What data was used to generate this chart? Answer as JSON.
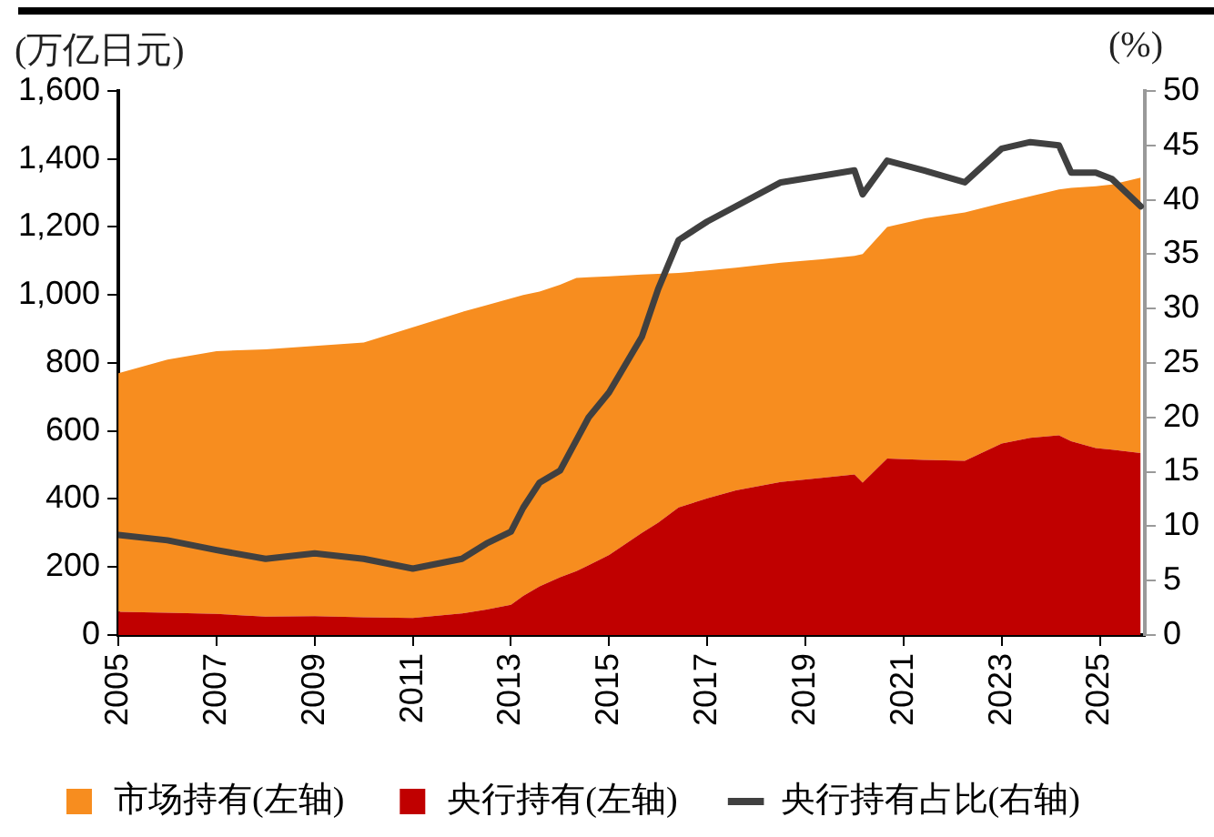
{
  "chart_data": {
    "type": "area",
    "stacked": true,
    "ylabel": "(万亿日元)",
    "y2label": "(%)",
    "legend": "bottom",
    "marker": "none",
    "x": [
      "2005-01",
      "2006-01",
      "2007-01",
      "2008-01",
      "2009-01",
      "2010-01",
      "2011-01",
      "2012-01",
      "2012-07",
      "2013-01",
      "2013-04",
      "2013-08",
      "2014-01",
      "2014-05",
      "2014-08",
      "2015-01",
      "2015-09",
      "2016-01",
      "2016-06",
      "2017-01",
      "2017-08",
      "2018-07",
      "2019-05",
      "2020-01",
      "2020-03",
      "2020-09",
      "2021-06",
      "2022-04",
      "2023-01",
      "2023-08",
      "2024-03",
      "2024-06",
      "2024-12",
      "2025-04",
      "2025-11"
    ],
    "xlim": [
      "2005-01",
      "2025-12"
    ],
    "xticks": [
      "2005",
      "2007",
      "2009",
      "2011",
      "2013",
      "2015",
      "2017",
      "2019",
      "2021",
      "2023",
      "2025"
    ],
    "ylim": [
      0,
      1600
    ],
    "yticks": [
      0,
      200,
      400,
      600,
      800,
      {
        "value": 1000,
        "label": "1,000"
      },
      {
        "value": 1200,
        "label": "1,200"
      },
      {
        "value": 1400,
        "label": "1,400"
      },
      {
        "value": 1600,
        "label": "1,600"
      }
    ],
    "y2lim": [
      0,
      50
    ],
    "y2ticks": [
      0,
      5,
      10,
      15,
      20,
      25,
      30,
      35,
      40,
      45,
      50
    ],
    "series": [
      {
        "name": "央行持有(左轴)",
        "type": "area",
        "color": "#c00000",
        "values": [
          68,
          65,
          62,
          54,
          55,
          52,
          50,
          63,
          75,
          89,
          115,
          143,
          170,
          188,
          205,
          235,
          300,
          330,
          375,
          402,
          425,
          450,
          462,
          472,
          448,
          519,
          515,
          512,
          563,
          580,
          587,
          570,
          550,
          545,
          535
        ]
      },
      {
        "name": "市场持有(左轴)",
        "type": "area",
        "color": "#f78d1f",
        "values": [
          702,
          745,
          773,
          786,
          795,
          808,
          855,
          887,
          895,
          901,
          885,
          867,
          860,
          862,
          847,
          820,
          760,
          732,
          690,
          670,
          655,
          645,
          643,
          643,
          672,
          681,
          710,
          731,
          707,
          710,
          723,
          745,
          770,
          780,
          810
        ]
      },
      {
        "name": "央行持有占比(右轴)",
        "type": "line",
        "axis": "y2",
        "color": "#404040",
        "values": [
          9.2,
          8.7,
          7.8,
          7.0,
          7.5,
          7.0,
          6.1,
          7.0,
          8.4,
          9.5,
          11.7,
          14.0,
          15.1,
          17.9,
          20.0,
          22.3,
          27.4,
          31.8,
          36.3,
          38.0,
          39.4,
          41.6,
          42.2,
          42.7,
          40.5,
          43.6,
          42.7,
          41.6,
          44.7,
          45.3,
          45.0,
          42.5,
          42.5,
          41.9,
          39.4
        ]
      }
    ]
  }
}
